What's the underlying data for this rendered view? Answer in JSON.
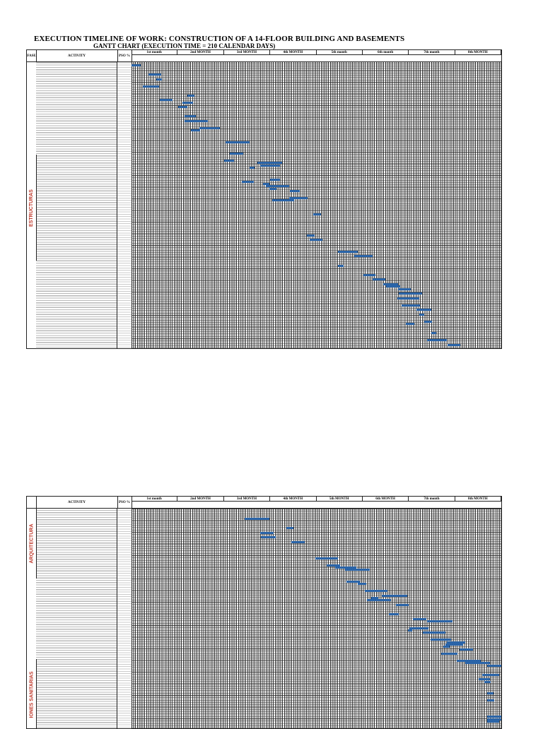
{
  "header": {
    "title": "EXECUTION TIMELINE OF WORK: CONSTRUCTION OF A 14-FLOOR BUILDING AND BASEMENTS",
    "subtitle": "GANTT CHART (EXECUTION TIME = 210 CALENDAR DAYS)"
  },
  "tables": [
    {
      "columns": [
        "FASE",
        "ACTIVITY",
        "PSO %"
      ],
      "months": [
        "1st month",
        "2nd MONTH",
        "3rd MONTH",
        "4th MONTH",
        "5th month",
        "6th month",
        "7th month",
        "8th MONTH"
      ],
      "phases": [
        "ESTRUCTURAS"
      ]
    },
    {
      "columns": [
        "ACTIVITY",
        "PSO %"
      ],
      "months": [
        "1st month",
        "2nd MONTH",
        "3rd MONTH",
        "4th MONTH",
        "5th MONTH",
        "6th MONTH",
        "7th month",
        "8th MONTH"
      ],
      "phases": [
        "ARQUITECTURA",
        "IONES SANITARIAS"
      ]
    }
  ]
}
